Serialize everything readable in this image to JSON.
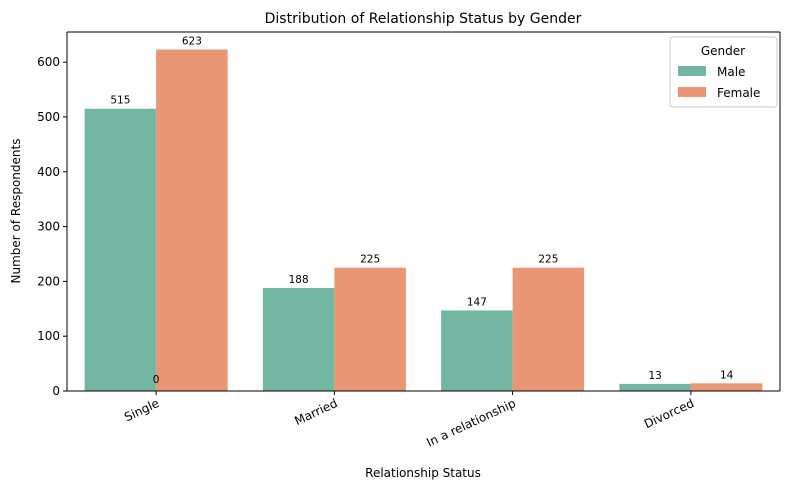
{
  "chart_data": {
    "type": "bar",
    "title": "Distribution of Relationship Status by Gender",
    "xlabel": "Relationship Status",
    "ylabel": "Number of Respondents",
    "categories": [
      "Single",
      "Married",
      "In a relationship",
      "Divorced"
    ],
    "series": [
      {
        "name": "Male",
        "values": [
          515,
          188,
          147,
          13
        ],
        "color": "#73b6a1"
      },
      {
        "name": "Female",
        "values": [
          623,
          225,
          225,
          14
        ],
        "color": "#e89674"
      }
    ],
    "bar_labels": [
      {
        "series": "Male",
        "labels": [
          "515",
          "188",
          "147",
          "13"
        ]
      },
      {
        "series": "Female",
        "labels": [
          "623",
          "225",
          "225",
          "14"
        ]
      }
    ],
    "extra_label": "0",
    "ylim": [
      0,
      655
    ],
    "yticks": [
      0,
      100,
      200,
      300,
      400,
      500,
      600
    ],
    "grid": false,
    "legend": {
      "title": "Gender",
      "position": "top-right"
    }
  }
}
